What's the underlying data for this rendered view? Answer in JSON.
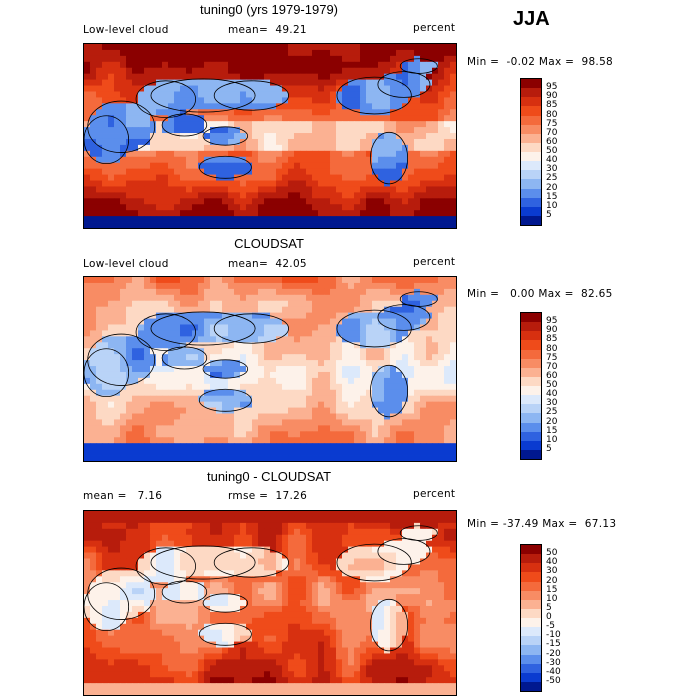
{
  "season": "JJA",
  "panels": [
    {
      "title": "tuning0 (yrs 1979-1979)",
      "left_label": "Low-level cloud",
      "mid_label": "mean=  49.21",
      "right_label": "percent",
      "minmax": "Min =  -0.02 Max =  98.58",
      "colorbar_ticks": [
        "95",
        "90",
        "85",
        "80",
        "75",
        "70",
        "60",
        "50",
        "40",
        "30",
        "25",
        "20",
        "15",
        "10",
        "5"
      ],
      "colors": [
        "#8b0000",
        "#b71c0c",
        "#d73010",
        "#ef4b1a",
        "#f46a3c",
        "#f88c64",
        "#fbb192",
        "#fdd9c4",
        "#fdf2ea",
        "#dce9fb",
        "#b9d3f7",
        "#8db6f2",
        "#5b8eec",
        "#2f62e0",
        "#0a3bd0",
        "#00188f"
      ]
    },
    {
      "title": "CLOUDSAT",
      "left_label": "Low-level cloud",
      "mid_label": "mean=  42.05",
      "right_label": "percent",
      "minmax": "Min =   0.00 Max =  82.65",
      "colorbar_ticks": [
        "95",
        "90",
        "85",
        "80",
        "75",
        "70",
        "60",
        "50",
        "40",
        "30",
        "25",
        "20",
        "15",
        "10",
        "5"
      ],
      "colors": [
        "#8b0000",
        "#b71c0c",
        "#d73010",
        "#ef4b1a",
        "#f46a3c",
        "#f88c64",
        "#fbb192",
        "#fdd9c4",
        "#fdf2ea",
        "#dce9fb",
        "#b9d3f7",
        "#8db6f2",
        "#5b8eec",
        "#2f62e0",
        "#0a3bd0",
        "#00188f"
      ]
    },
    {
      "title": "tuning0 - CLOUDSAT",
      "left_label": "mean =   7.16",
      "mid_label": "rmse =  17.26",
      "right_label": "percent",
      "minmax": "Min = -37.49 Max =  67.13",
      "colorbar_ticks": [
        "50",
        "40",
        "30",
        "20",
        "15",
        "10",
        "5",
        "0",
        "-5",
        "-10",
        "-15",
        "-20",
        "-30",
        "-40",
        "-50"
      ],
      "colors": [
        "#8b0000",
        "#b71c0c",
        "#d73010",
        "#ef4b1a",
        "#f46a3c",
        "#f88c64",
        "#fbb192",
        "#fdd9c4",
        "#fdf2ea",
        "#dce9fb",
        "#b9d3f7",
        "#8db6f2",
        "#5b8eec",
        "#2f62e0",
        "#0a3bd0",
        "#00188f"
      ]
    }
  ],
  "chart_data": [
    {
      "type": "heatmap",
      "title": "tuning0 (yrs 1979-1979)",
      "variable": "Low-level cloud",
      "units": "percent",
      "mean": 49.21,
      "min": -0.02,
      "max": 98.58,
      "levels": [
        5,
        10,
        15,
        20,
        25,
        30,
        40,
        50,
        60,
        70,
        75,
        80,
        85,
        90,
        95
      ]
    },
    {
      "type": "heatmap",
      "title": "CLOUDSAT",
      "variable": "Low-level cloud",
      "units": "percent",
      "mean": 42.05,
      "min": 0.0,
      "max": 82.65,
      "levels": [
        5,
        10,
        15,
        20,
        25,
        30,
        40,
        50,
        60,
        70,
        75,
        80,
        85,
        90,
        95
      ]
    },
    {
      "type": "heatmap",
      "title": "tuning0 - CLOUDSAT",
      "units": "percent",
      "mean": 7.16,
      "rmse": 17.26,
      "min": -37.49,
      "max": 67.13,
      "levels": [
        -50,
        -40,
        -30,
        -20,
        -15,
        -10,
        -5,
        0,
        5,
        10,
        15,
        20,
        30,
        40,
        50
      ]
    }
  ]
}
